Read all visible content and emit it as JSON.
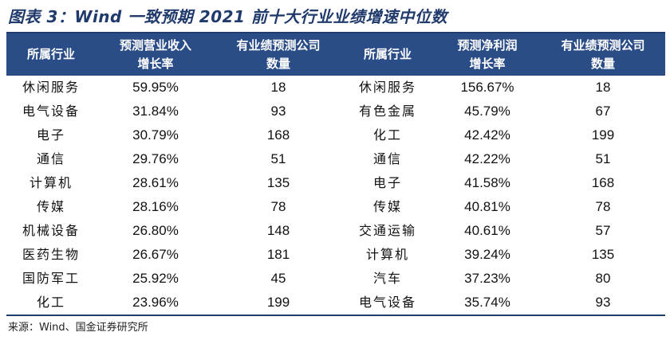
{
  "title": "图表 3：Wind 一致预期 2021 前十大行业业绩增速中位数",
  "headers": {
    "left_industry": "所属行业",
    "left_growth_line1": "预测营业收入",
    "left_growth_line2": "增长率",
    "left_count_line1": "有业绩预测公司",
    "left_count_line2": "数量",
    "right_industry": "所属行业",
    "right_growth_line1": "预测净利润",
    "right_growth_line2": "增长率",
    "right_count_line1": "有业绩预测公司",
    "right_count_line2": "数量"
  },
  "rows": [
    {
      "left_industry": "休闲服务",
      "left_growth": "59.95%",
      "left_count": "18",
      "right_industry": "休闲服务",
      "right_growth": "156.67%",
      "right_count": "18"
    },
    {
      "left_industry": "电气设备",
      "left_growth": "31.84%",
      "left_count": "93",
      "right_industry": "有色金属",
      "right_growth": "45.79%",
      "right_count": "67"
    },
    {
      "left_industry": "电子",
      "left_growth": "30.79%",
      "left_count": "168",
      "right_industry": "化工",
      "right_growth": "42.42%",
      "right_count": "199"
    },
    {
      "left_industry": "通信",
      "left_growth": "29.76%",
      "left_count": "51",
      "right_industry": "通信",
      "right_growth": "42.22%",
      "right_count": "51"
    },
    {
      "left_industry": "计算机",
      "left_growth": "28.61%",
      "left_count": "135",
      "right_industry": "电子",
      "right_growth": "41.58%",
      "right_count": "168"
    },
    {
      "left_industry": "传媒",
      "left_growth": "28.16%",
      "left_count": "78",
      "right_industry": "传媒",
      "right_growth": "40.81%",
      "right_count": "78"
    },
    {
      "left_industry": "机械设备",
      "left_growth": "26.80%",
      "left_count": "148",
      "right_industry": "交通运输",
      "right_growth": "40.61%",
      "right_count": "57"
    },
    {
      "left_industry": "医药生物",
      "left_growth": "26.67%",
      "left_count": "181",
      "right_industry": "计算机",
      "right_growth": "39.24%",
      "right_count": "135"
    },
    {
      "left_industry": "国防军工",
      "left_growth": "25.92%",
      "left_count": "45",
      "right_industry": "汽车",
      "right_growth": "37.23%",
      "right_count": "80"
    },
    {
      "left_industry": "化工",
      "left_growth": "23.96%",
      "left_count": "199",
      "right_industry": "电气设备",
      "right_growth": "35.74%",
      "right_count": "93"
    }
  ],
  "source": "来源：Wind、国金证券研究所",
  "colors": {
    "title": "#1f3a6b",
    "header_bg": "#2b4d87",
    "header_text": "#ffffff",
    "rule": "#1f3a6b"
  }
}
